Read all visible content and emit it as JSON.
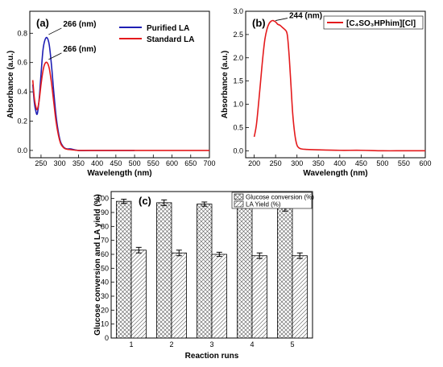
{
  "chart_data": [
    {
      "type": "line",
      "panel_label": "(a)",
      "xlabel": "Wavelength (nm)",
      "ylabel": "Absorbance (a.u.)",
      "xlim": [
        220,
        700
      ],
      "ylim": [
        -0.05,
        0.95
      ],
      "xticks": [
        250,
        300,
        350,
        400,
        450,
        500,
        550,
        600,
        650,
        700
      ],
      "yticks": [
        0.0,
        0.2,
        0.4,
        0.6,
        0.8
      ],
      "legend_position": "top-right",
      "annotations": [
        "266 (nm)",
        "266 (nm)"
      ],
      "series": [
        {
          "name": "Purified LA",
          "color": "#1f1fb4",
          "x": [
            228,
            232,
            236,
            240,
            245,
            250,
            255,
            260,
            266,
            272,
            278,
            284,
            290,
            296,
            302,
            308,
            314,
            320,
            330,
            350,
            400,
            450,
            500
          ],
          "y": [
            0.45,
            0.33,
            0.27,
            0.25,
            0.35,
            0.52,
            0.68,
            0.75,
            0.77,
            0.72,
            0.58,
            0.4,
            0.24,
            0.13,
            0.06,
            0.03,
            0.015,
            0.01,
            0.01,
            0.0,
            0.0,
            0.0,
            0.0
          ]
        },
        {
          "name": "Standard LA",
          "color": "#e41a1c",
          "x": [
            228,
            232,
            236,
            240,
            245,
            250,
            255,
            260,
            266,
            272,
            278,
            284,
            290,
            296,
            302,
            308,
            314,
            320,
            330,
            350,
            400,
            450,
            500,
            550,
            600,
            650,
            700
          ],
          "y": [
            0.48,
            0.36,
            0.3,
            0.28,
            0.34,
            0.45,
            0.54,
            0.59,
            0.6,
            0.56,
            0.46,
            0.33,
            0.2,
            0.11,
            0.05,
            0.025,
            0.012,
            0.008,
            0.005,
            0.0,
            0.0,
            0.0,
            0.0,
            0.0,
            0.0,
            0.0,
            0.0
          ]
        }
      ]
    },
    {
      "type": "line",
      "panel_label": "(b)",
      "xlabel": "Wavelength (nm)",
      "ylabel": "Absorbance (a.u.)",
      "xlim": [
        180,
        600
      ],
      "ylim": [
        -0.15,
        3.0
      ],
      "xticks": [
        200,
        250,
        300,
        350,
        400,
        450,
        500,
        550,
        600
      ],
      "yticks": [
        0.0,
        0.5,
        1.0,
        1.5,
        2.0,
        2.5,
        3.0
      ],
      "legend_position": "top-right",
      "annotations": [
        "244 (nm)"
      ],
      "series": [
        {
          "name": "[C₄SO₃HPhim][Cl]",
          "color": "#e41a1c",
          "x": [
            200,
            205,
            210,
            215,
            220,
            225,
            230,
            235,
            240,
            244,
            250,
            255,
            260,
            265,
            270,
            275,
            278,
            282,
            286,
            290,
            295,
            300,
            305,
            310,
            320,
            350,
            400,
            450,
            500,
            550,
            600
          ],
          "y": [
            0.3,
            0.55,
            1.0,
            1.5,
            2.0,
            2.4,
            2.62,
            2.74,
            2.79,
            2.8,
            2.77,
            2.72,
            2.7,
            2.66,
            2.62,
            2.57,
            2.45,
            2.0,
            1.4,
            0.8,
            0.35,
            0.12,
            0.06,
            0.04,
            0.03,
            0.02,
            0.01,
            0.01,
            0.0,
            0.0,
            0.0
          ]
        }
      ]
    },
    {
      "type": "bar",
      "panel_label": "(c)",
      "xlabel": "Reaction runs",
      "ylabel": "Glucose conversion and LA yield (%)",
      "categories": [
        "1",
        "2",
        "3",
        "4",
        "5"
      ],
      "ylim": [
        0,
        105
      ],
      "yticks": [
        0,
        10,
        20,
        30,
        40,
        50,
        60,
        70,
        80,
        90,
        100
      ],
      "legend_position": "top-right",
      "series": [
        {
          "name": "Glucose conversion (%)",
          "pattern": "crosshatch",
          "values": [
            98,
            97,
            96,
            95,
            93
          ],
          "errors": [
            1.5,
            2,
            1.5,
            2,
            2
          ]
        },
        {
          "name": "LA Yield (%)",
          "pattern": "diagonal",
          "values": [
            63,
            61,
            60,
            59,
            59
          ],
          "errors": [
            2,
            2,
            1.5,
            2,
            2
          ]
        }
      ]
    }
  ]
}
